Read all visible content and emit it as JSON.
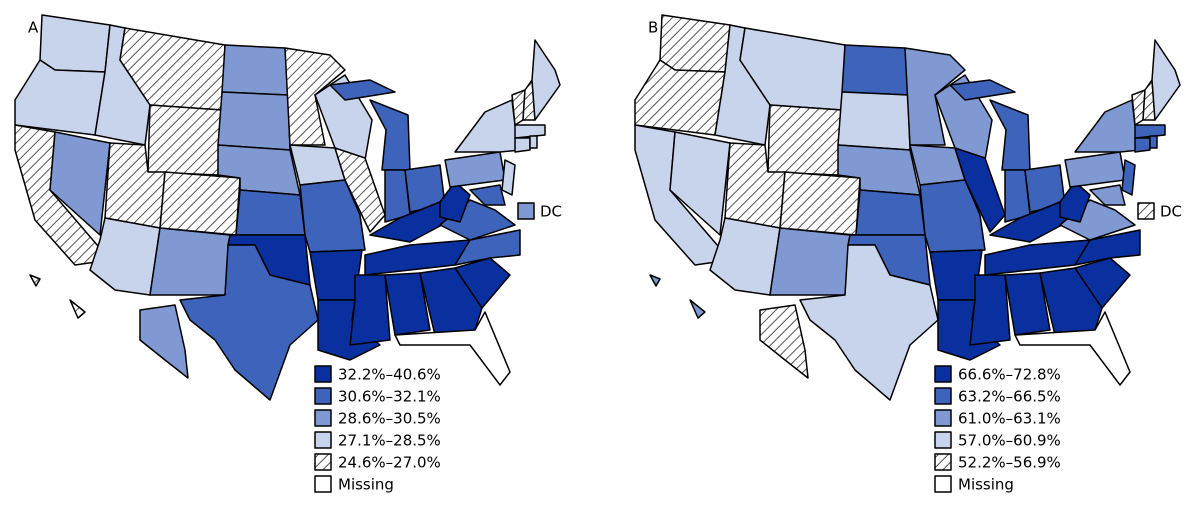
{
  "panels": [
    {
      "label": "A",
      "dc": "DC",
      "legend": [
        {
          "label": "32.2%–40.6%",
          "color": "#0a2f9e"
        },
        {
          "label": "30.6%–32.1%",
          "color": "#3d63ba"
        },
        {
          "label": "28.6%–30.5%",
          "color": "#8099d2"
        },
        {
          "label": "27.1%–28.5%",
          "color": "#c8d4ec"
        },
        {
          "label": "24.6%–27.0%",
          "color": "#ffffff",
          "hatched": true
        },
        {
          "label": "Missing",
          "color": "#ffffff"
        }
      ]
    },
    {
      "label": "B",
      "dc": "DC",
      "legend": [
        {
          "label": "66.6%–72.8%",
          "color": "#0a2f9e"
        },
        {
          "label": "63.2%–66.5%",
          "color": "#3d63ba"
        },
        {
          "label": "61.0%–63.1%",
          "color": "#8099d2"
        },
        {
          "label": "57.0%–60.9%",
          "color": "#c8d4ec"
        },
        {
          "label": "52.2%–56.9%",
          "color": "#ffffff",
          "hatched": true
        },
        {
          "label": "Missing",
          "color": "#ffffff"
        }
      ]
    }
  ]
}
